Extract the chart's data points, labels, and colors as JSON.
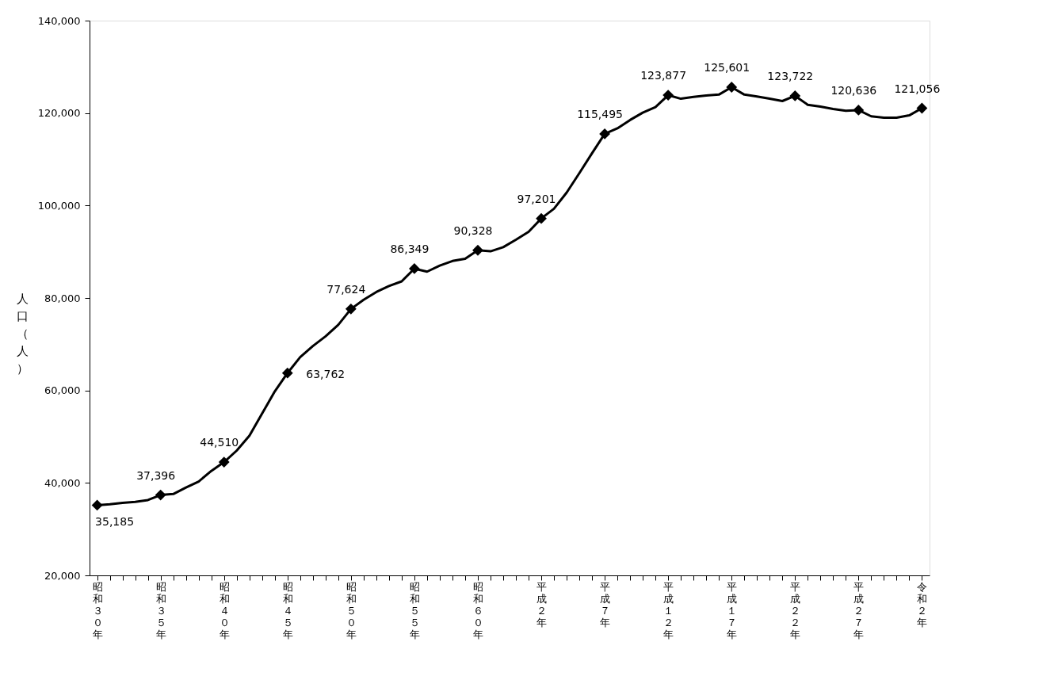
{
  "chart_data": {
    "type": "line",
    "ylabel": "人口（人）",
    "categories": [
      "昭和３０年",
      null,
      null,
      null,
      null,
      "昭和３５年",
      null,
      null,
      null,
      null,
      "昭和４０年",
      null,
      null,
      null,
      null,
      "昭和４５年",
      null,
      null,
      null,
      null,
      "昭和５０年",
      null,
      null,
      null,
      null,
      "昭和５５年",
      null,
      null,
      null,
      null,
      "昭和６０年",
      null,
      null,
      null,
      null,
      "平成２年",
      null,
      null,
      null,
      null,
      "平成７年",
      null,
      null,
      null,
      null,
      "平成１２年",
      null,
      null,
      null,
      null,
      "平成１７年",
      null,
      null,
      null,
      null,
      "平成２２年",
      null,
      null,
      null,
      null,
      "平成２７年",
      null,
      null,
      null,
      null,
      "令和２年"
    ],
    "series": [
      {
        "color": "#000000",
        "line_style": "solid",
        "values": [
          35185,
          35400,
          35700,
          35900,
          36300,
          37396,
          37600,
          39000,
          40300,
          42600,
          44510,
          47000,
          50200,
          55000,
          59800,
          63762,
          67200,
          69600,
          71700,
          74200,
          77624,
          79600,
          81300,
          82600,
          83600,
          86349,
          85700,
          87000,
          88000,
          88500,
          90328,
          90100,
          91000,
          92600,
          94300,
          97201,
          99300,
          102800,
          107000,
          111300,
          115495,
          116700,
          118500,
          120100,
          121300,
          123877,
          123100,
          123500,
          123800,
          124000,
          125601,
          124000,
          123600,
          123100,
          122600,
          123722,
          121800,
          121400,
          120900,
          120500,
          120636,
          119300,
          119000,
          119000,
          119500,
          121056
        ]
      },
      {
        "type": "scatter",
        "color": "#000000",
        "marker": "diamond",
        "values": [
          35185,
          null,
          null,
          null,
          null,
          37396,
          null,
          null,
          null,
          null,
          44510,
          null,
          null,
          null,
          null,
          63762,
          null,
          null,
          null,
          null,
          77624,
          null,
          null,
          null,
          null,
          86349,
          null,
          null,
          null,
          null,
          90328,
          null,
          null,
          null,
          null,
          97201,
          null,
          null,
          null,
          null,
          115495,
          null,
          null,
          null,
          null,
          123877,
          null,
          null,
          null,
          null,
          125601,
          null,
          null,
          null,
          null,
          123722,
          null,
          null,
          null,
          null,
          120636,
          null,
          null,
          null,
          null,
          121056
        ],
        "value_labels": [
          "35,185",
          null,
          null,
          null,
          null,
          "37,396",
          null,
          null,
          null,
          null,
          "44,510",
          null,
          null,
          null,
          null,
          "63,762",
          null,
          null,
          null,
          null,
          "77,624",
          null,
          null,
          null,
          null,
          "86,349",
          null,
          null,
          null,
          null,
          "90,328",
          null,
          null,
          null,
          null,
          "97,201",
          null,
          null,
          null,
          null,
          "115,495",
          null,
          null,
          null,
          null,
          "123,877",
          null,
          null,
          null,
          null,
          "125,601",
          null,
          null,
          null,
          null,
          "123,722",
          null,
          null,
          null,
          null,
          "120,636",
          null,
          null,
          null,
          null,
          "121,056"
        ]
      }
    ],
    "ylim": [
      20000,
      140000
    ],
    "yticks": [
      {
        "value": 20000,
        "label": "20,000"
      },
      {
        "value": 40000,
        "label": "40,000"
      },
      {
        "value": 60000,
        "label": "60,000"
      },
      {
        "value": 80000,
        "label": "80,000"
      },
      {
        "value": 100000,
        "label": "100,000"
      },
      {
        "value": 120000,
        "label": "120,000"
      },
      {
        "value": 140000,
        "label": "140,000"
      }
    ],
    "grid": false
  }
}
